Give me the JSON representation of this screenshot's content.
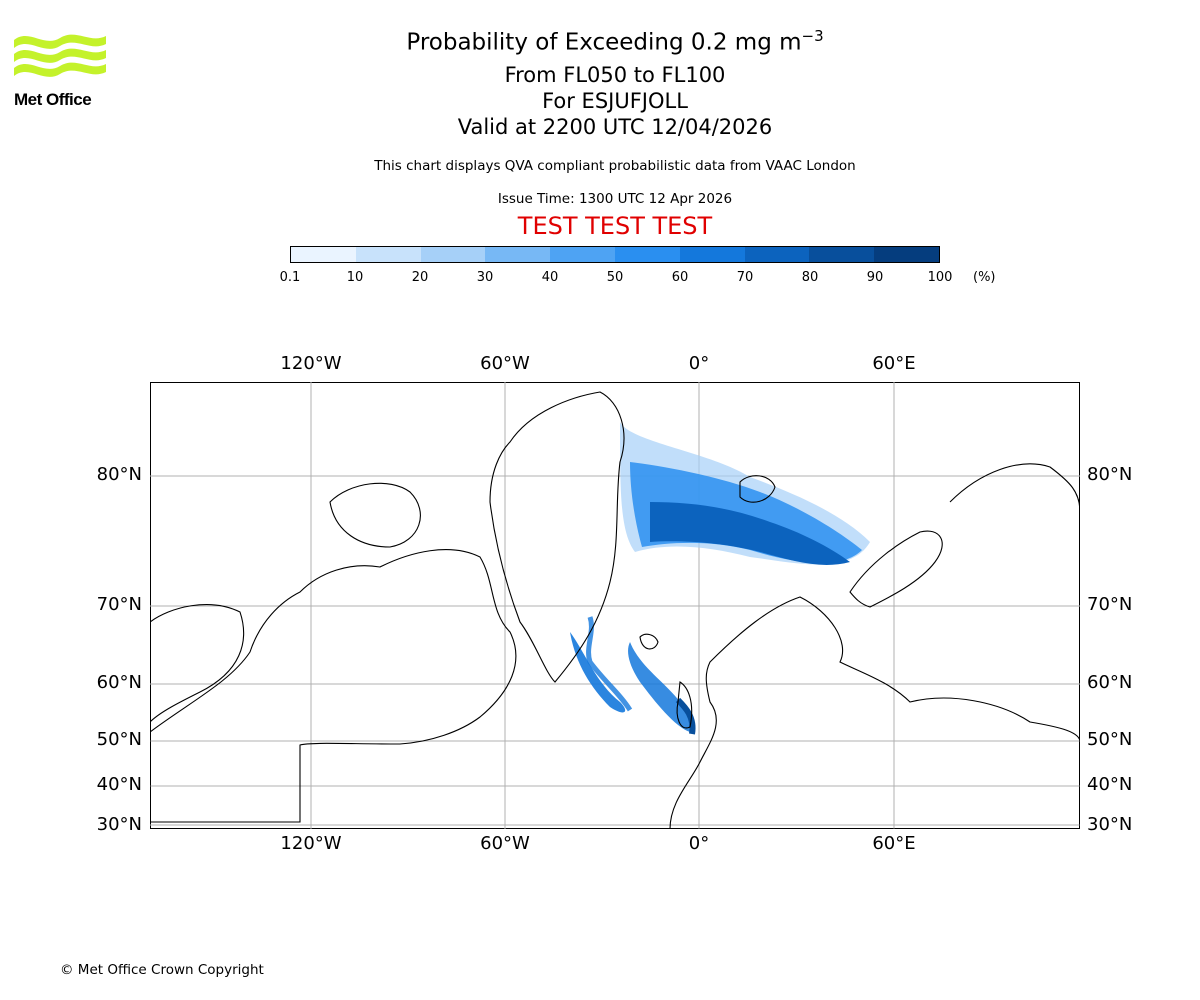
{
  "logo": {
    "text": "Met Office",
    "color": "#c4f22b"
  },
  "header": {
    "title_main": "Probability of Exceeding 0.2 mg m",
    "title_exponent": "−3",
    "flight_levels": "From FL050 to FL100",
    "volcano": "For ESJUFJOLL",
    "valid_time": "Valid at 2200 UTC 12/04/2026",
    "description": "This chart displays QVA compliant probabilistic data from VAAC London",
    "issue_time": "Issue Time: 1300 UTC 12 Apr 2026",
    "test_banner": "TEST TEST TEST",
    "test_color": "#e00000"
  },
  "colorbar": {
    "ticks": [
      "0.1",
      "10",
      "20",
      "30",
      "40",
      "50",
      "60",
      "70",
      "80",
      "90",
      "100"
    ],
    "unit": "(%)",
    "colors": [
      "#eaf4ff",
      "#c8e2fb",
      "#a6d0f8",
      "#77b8f5",
      "#4ea3f3",
      "#2a8ff0",
      "#1478dc",
      "#0c63be",
      "#084f9c",
      "#053d7e",
      "#022a58"
    ]
  },
  "map": {
    "lon_labels": [
      "120°W",
      "60°W",
      "0°",
      "60°E"
    ],
    "lat_labels": [
      "80°N",
      "70°N",
      "60°N",
      "50°N",
      "40°N",
      "30°N"
    ]
  },
  "footer": {
    "copyright": "© Met Office Crown Copyright"
  }
}
